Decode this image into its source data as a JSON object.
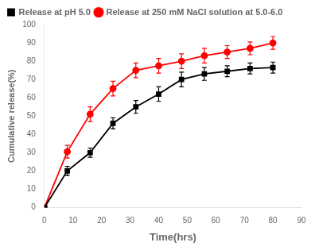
{
  "chart_data": {
    "type": "line",
    "x": [
      0,
      8,
      16,
      24,
      32,
      40,
      48,
      56,
      64,
      72,
      80
    ],
    "series": [
      {
        "name": "Release at pH 5.0",
        "color": "#000000",
        "marker": "square",
        "line_style": "solid",
        "values": [
          0,
          20,
          30,
          46,
          55,
          62,
          70,
          73,
          74.5,
          76,
          76.5
        ],
        "yerr": [
          0,
          2.5,
          2.5,
          3,
          3.5,
          4,
          4,
          3.5,
          3,
          3,
          3
        ]
      },
      {
        "name": "Release at 250 mM NaCl solution at 5.0-6.0",
        "color": "#ff0000",
        "marker": "circle",
        "line_style": "solid",
        "values": [
          0,
          30.5,
          51,
          65,
          75,
          77.5,
          80,
          83,
          85,
          87,
          90
        ],
        "yerr": [
          0,
          3.5,
          4,
          4,
          4,
          4,
          4,
          4,
          3.5,
          3.5,
          3.5
        ]
      }
    ],
    "xlabel": "Time(hrs)",
    "ylabel": "Cumulative release(%)",
    "xlim": [
      0,
      90
    ],
    "ylim": [
      0,
      100
    ],
    "xticks": [
      0,
      10,
      20,
      30,
      40,
      50,
      60,
      70,
      80,
      90
    ],
    "yticks": [
      0,
      10,
      20,
      30,
      40,
      50,
      60,
      70,
      80,
      90,
      100
    ],
    "grid": false,
    "legend": "upper left"
  }
}
